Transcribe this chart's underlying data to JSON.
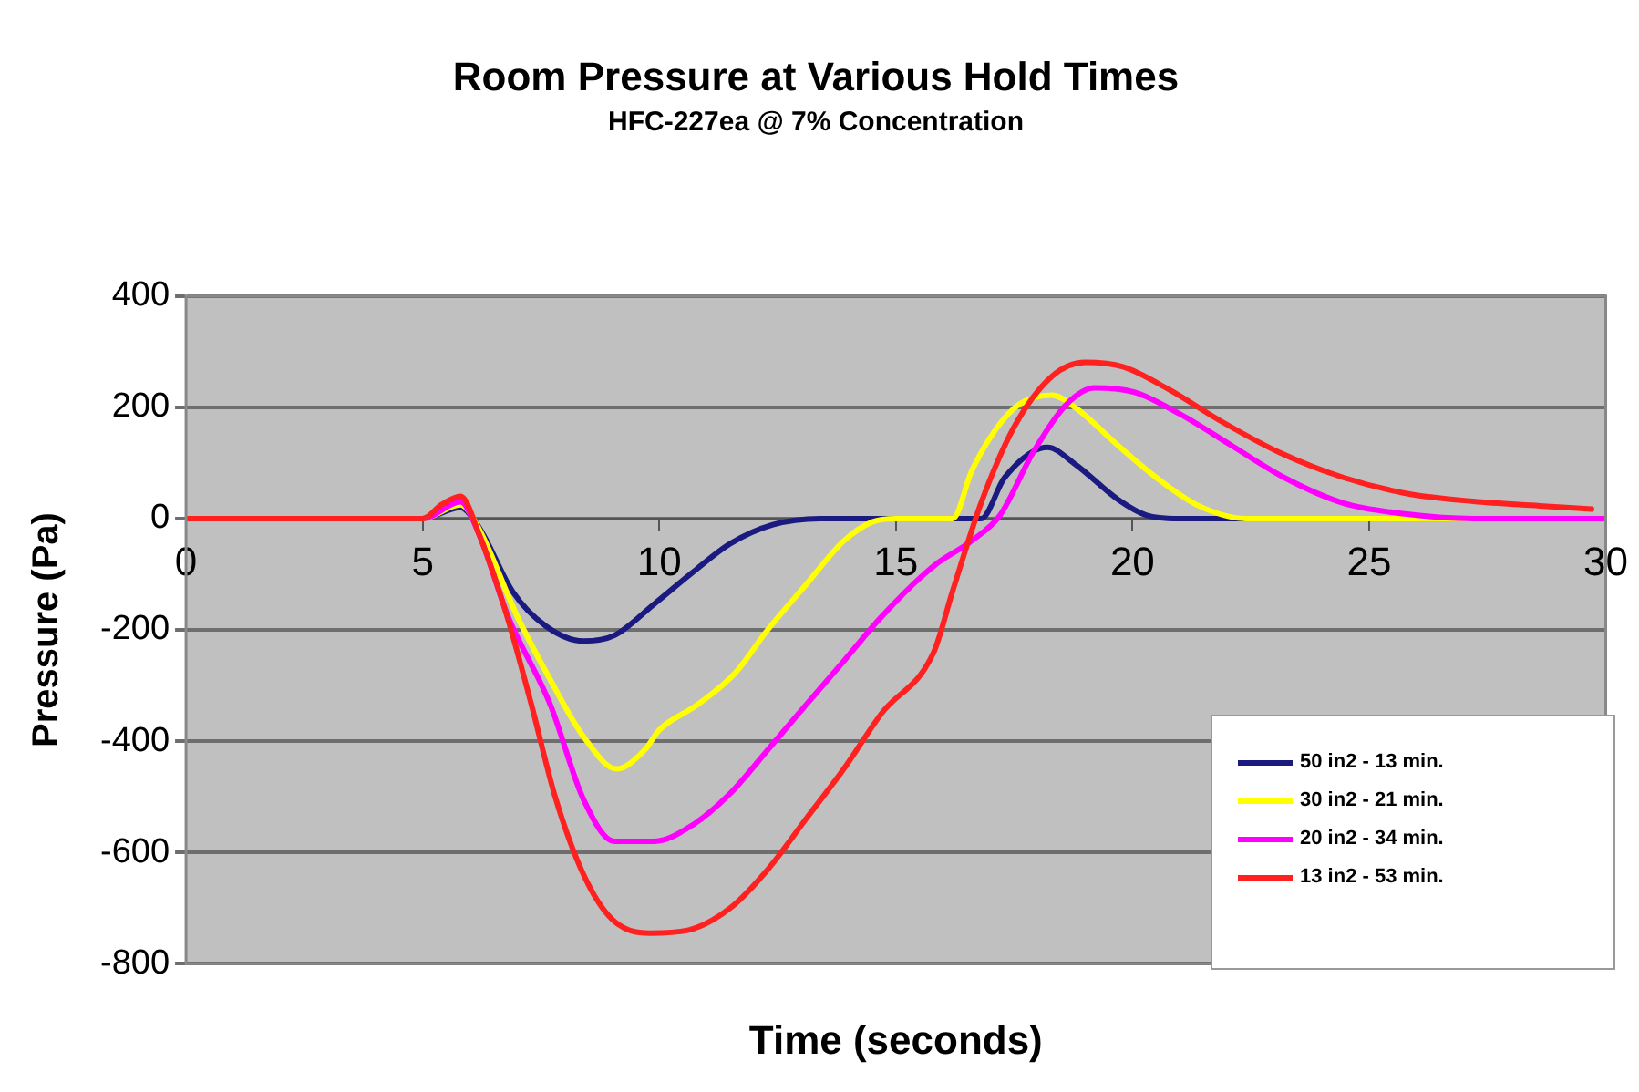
{
  "chart_data": {
    "type": "line",
    "title": "Room Pressure at Various Hold Times",
    "subtitle": "HFC-227ea @ 7% Concentration",
    "xlabel": "Time (seconds)",
    "ylabel": "Pressure (Pa)",
    "xlim": [
      0,
      30
    ],
    "xticks": [
      0,
      5,
      10,
      15,
      20,
      25,
      30
    ],
    "ylim": [
      -800,
      400
    ],
    "yticks": [
      -800,
      -600,
      -400,
      -200,
      0,
      200,
      400
    ],
    "grid": "y",
    "legend": "bottom right",
    "marker": "none",
    "line_style": "solid",
    "series": [
      {
        "name": "50 in2 - 13 min.",
        "color": "#1a1a80",
        "x": [
          0,
          5,
          5.8,
          6.2,
          6.9,
          7.6,
          8.4,
          9.05,
          9.9,
          10.7,
          11.5,
          12.4,
          13.4,
          16.5,
          16.8,
          17.3,
          18.2,
          18.8,
          19.7,
          20.3,
          21,
          22.5
        ],
        "values": [
          0,
          0,
          20,
          -17,
          -131,
          -193,
          -220,
          -210,
          -153,
          -97,
          -45,
          -11,
          0,
          0,
          0,
          74,
          128,
          97,
          34,
          6,
          0,
          0
        ]
      },
      {
        "name": "30 in2 - 21 min.",
        "color": "#ffff00",
        "x": [
          0,
          5,
          5.8,
          6.2,
          7.0,
          7.7,
          8.4,
          9.1,
          9.7,
          10.0,
          10.8,
          11.6,
          12.3,
          13.1,
          13.9,
          14.5,
          15,
          16.2,
          16.6,
          17.1,
          17.6,
          18.3,
          18.8,
          19.7,
          20.5,
          21.4,
          22.4,
          30
        ],
        "values": [
          0,
          0,
          25,
          -20,
          -176,
          -290,
          -392,
          -450,
          -415,
          -380,
          -335,
          -278,
          -199,
          -119,
          -40,
          -6,
          0,
          0,
          85,
          159,
          205,
          222,
          199,
          131,
          74,
          23,
          0,
          0
        ]
      },
      {
        "name": "20 in2 - 34 min.",
        "color": "#ff00ff",
        "x": [
          0,
          5,
          5.8,
          6.2,
          6.8,
          7.7,
          8.4,
          9.05,
          9.9,
          10.7,
          11.5,
          12.3,
          13.1,
          13.9,
          14.7,
          15.8,
          16.6,
          17.2,
          17.9,
          18.6,
          19.2,
          20.05,
          21.0,
          22.1,
          23.2,
          24.45,
          25.8,
          27.2,
          30
        ],
        "values": [
          0,
          0,
          30,
          -30,
          -175,
          -335,
          -505,
          -580,
          -580,
          -551,
          -494,
          -415,
          -335,
          -256,
          -176,
          -85,
          -40,
          6,
          119,
          205,
          235,
          227,
          188,
          131,
          74,
          28,
          8,
          0,
          0
        ]
      },
      {
        "name": "13 in2 - 53 min.",
        "color": "#ff2020",
        "x": [
          0,
          5,
          5.4,
          5.8,
          6.2,
          6.8,
          7.3,
          7.8,
          8.4,
          9.0,
          9.8,
          10.6,
          11.5,
          12.3,
          13.1,
          13.9,
          14.7,
          15.8,
          16.2,
          16.8,
          17.5,
          18.3,
          19.0,
          19.8,
          20.75,
          21.85,
          23.1,
          24.45,
          25.8,
          27.2,
          28.6,
          29.7
        ],
        "values": [
          0,
          0,
          25,
          40,
          -30,
          -180,
          -335,
          -500,
          -640,
          -720,
          -745,
          -740,
          -700,
          -630,
          -540,
          -450,
          -350,
          -240,
          -130,
          28,
          165,
          256,
          281,
          273,
          233,
          176,
          119,
          74,
          45,
          31,
          23,
          17
        ]
      }
    ]
  }
}
